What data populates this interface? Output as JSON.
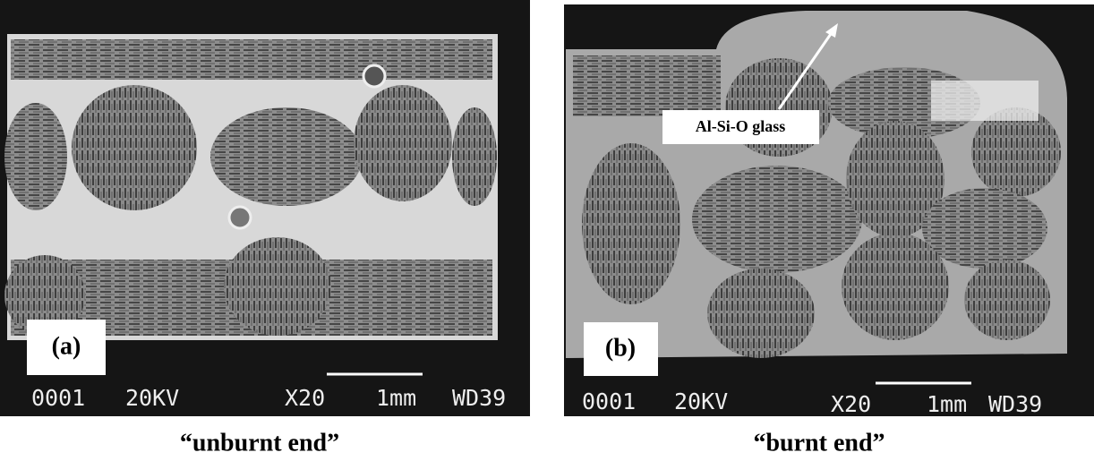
{
  "panels": [
    {
      "label": "(a)",
      "info": {
        "code": "0001",
        "voltage": "20KV",
        "magnification": "X20",
        "scale": "1mm",
        "wd": "WD39"
      },
      "caption": "“unburnt end”"
    },
    {
      "label": "(b)",
      "info": {
        "code": "0001",
        "voltage": "20KV",
        "magnification": "X20",
        "scale": "1mm",
        "wd": "WD39"
      },
      "annotation": "Al-Si-O glass",
      "caption": "“burnt end”"
    }
  ]
}
